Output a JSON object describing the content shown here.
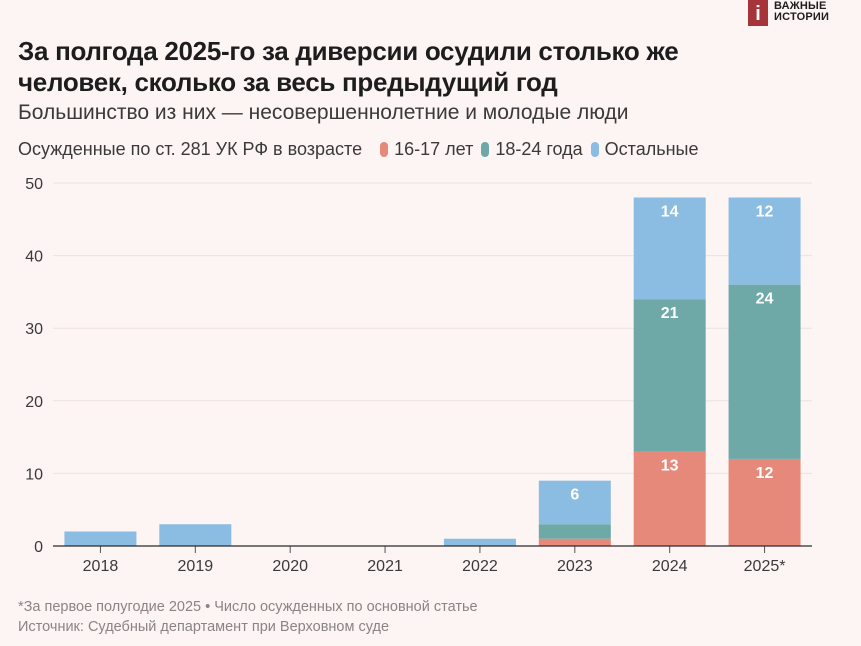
{
  "logo": {
    "mark": "i",
    "line1": "ВАЖНЫЕ",
    "line2": "ИСТОРИИ",
    "color": "#a6343a"
  },
  "header": {
    "title_line1": "За полгода 2025-го за диверсии осудили столько же",
    "title_line2": "человек, сколько за весь предыдущий год",
    "subtitle": "Большинство из них — несовершеннолетние и молодые люди"
  },
  "legend": {
    "label": "Осужденные по ст. 281 УК РФ в возрасте",
    "items": [
      {
        "name": "16-17 лет",
        "color": "#e6897a"
      },
      {
        "name": "18-24 года",
        "color": "#6fa9a7"
      },
      {
        "name": "Остальные",
        "color": "#8bbce2"
      }
    ]
  },
  "footer": {
    "note": "*За первое полугодие 2025 • Число осужденных по основной статье",
    "source": "Источник: Судебный департамент при Верховном суде"
  },
  "chart_data": {
    "type": "bar",
    "stacked": true,
    "title": "За полгода 2025-го за диверсии осудили столько же человек, сколько за весь предыдущий год",
    "subtitle": "Большинство из них — несовершеннолетние и молодые люди",
    "xlabel": "",
    "ylabel": "",
    "categories": [
      "2018",
      "2019",
      "2020",
      "2021",
      "2022",
      "2023",
      "2024",
      "2025*"
    ],
    "series": [
      {
        "name": "16-17 лет",
        "color": "#e6897a",
        "values": [
          0,
          0,
          0,
          0,
          0,
          1,
          13,
          12
        ]
      },
      {
        "name": "18-24 года",
        "color": "#6fa9a7",
        "values": [
          0,
          0,
          0,
          0,
          0,
          2,
          21,
          24
        ]
      },
      {
        "name": "Остальные",
        "color": "#8bbce2",
        "values": [
          2,
          3,
          0,
          0,
          1,
          6,
          14,
          12
        ]
      }
    ],
    "data_labels": {
      "2023": {
        "Остальные": "6"
      },
      "2024": {
        "16-17 лет": "13",
        "18-24 года": "21",
        "Остальные": "14"
      },
      "2025*": {
        "16-17 лет": "12",
        "18-24 года": "24",
        "Остальные": "12"
      }
    },
    "ylim": [
      0,
      50
    ],
    "yticks": [
      0,
      10,
      20,
      30,
      40,
      50
    ],
    "grid": true,
    "legend_position": "top-left"
  }
}
